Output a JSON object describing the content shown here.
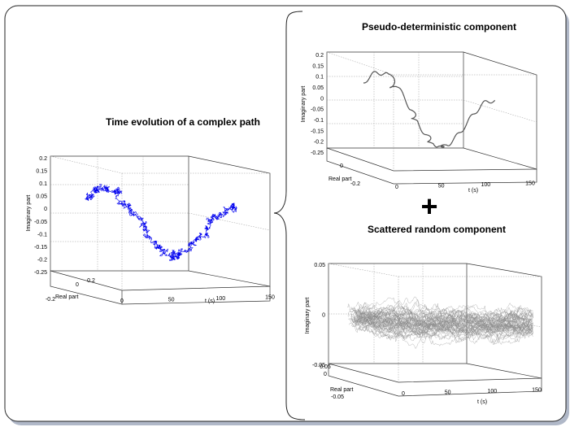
{
  "colors": {
    "blue_path": "#0000ee",
    "gray_path": "#555555",
    "random_path": "#8a8a8a",
    "frame_shadow": "#b0b8c8"
  },
  "operator": "+",
  "chart_data": [
    {
      "type": "line3d",
      "title": "Time evolution of a complex path",
      "xlabel": "t (s)",
      "ylabel": "Real part",
      "zlabel": "Imaginary part",
      "xticks": [
        "0",
        "50",
        "100",
        "150"
      ],
      "yticks": [
        "0.2",
        "0",
        "-0.2"
      ],
      "zticks": [
        "0.2",
        "0.15",
        "0.1",
        "0.05",
        "0",
        "-0.05",
        "-0.1",
        "-0.15",
        "-0.2",
        "-0.25"
      ],
      "xlim": [
        0,
        150
      ],
      "zlim": [
        -0.25,
        0.2
      ],
      "series_color": "#0000ee"
    },
    {
      "type": "line3d",
      "title": "Pseudo-deterministic component",
      "xlabel": "t (s)",
      "ylabel": "Real part",
      "zlabel": "Imaginary part",
      "xticks": [
        "0",
        "50",
        "100",
        "150"
      ],
      "yticks": [
        "0",
        "-0.2"
      ],
      "zticks": [
        "0.2",
        "0.15",
        "0.1",
        "0.05",
        "0",
        "-0.05",
        "-0.1",
        "-0.15",
        "-0.2",
        "-0.25"
      ],
      "xlim": [
        0,
        150
      ],
      "zlim": [
        -0.25,
        0.2
      ],
      "series_color": "#555555"
    },
    {
      "type": "line3d",
      "title": "Scattered random component",
      "xlabel": "t (s)",
      "ylabel": "Real part",
      "zlabel": "Imaginary part",
      "xticks": [
        "0",
        "50",
        "100",
        "150"
      ],
      "yticks": [
        "0.05",
        "0",
        "-0.05"
      ],
      "zticks": [
        "0.05",
        "0",
        "-0.05"
      ],
      "xlim": [
        0,
        150
      ],
      "zlim": [
        -0.05,
        0.05
      ],
      "series_color": "#8a8a8a"
    }
  ]
}
